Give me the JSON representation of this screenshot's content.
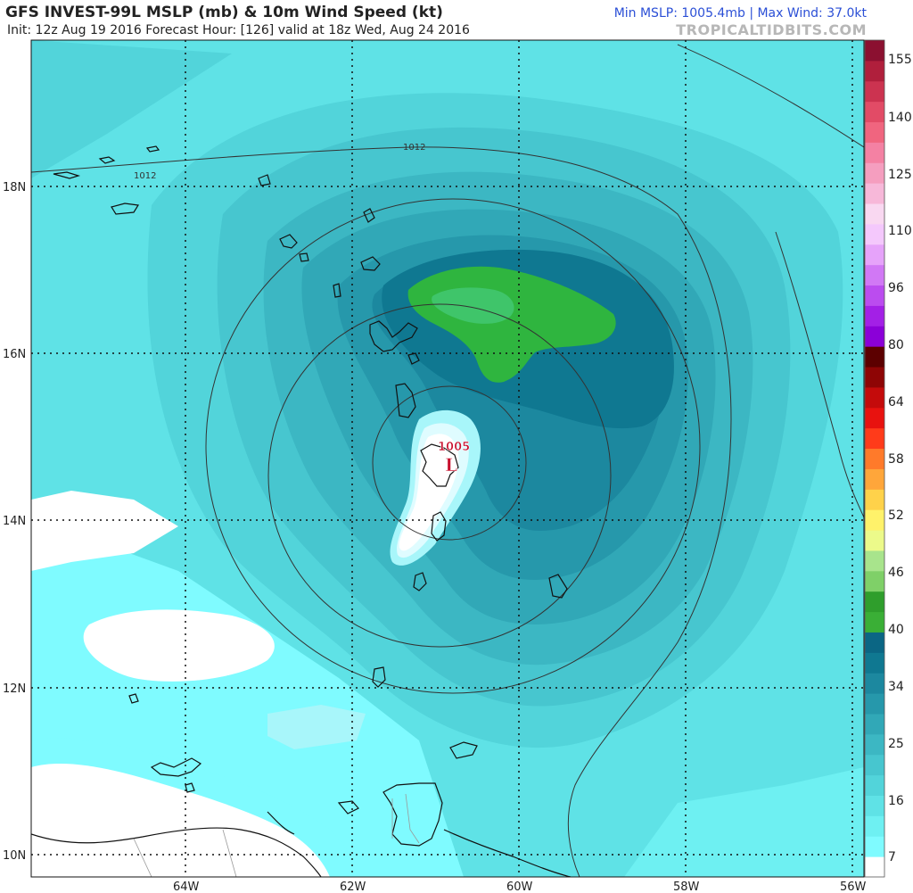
{
  "header": {
    "title": "GFS INVEST-99L MSLP (mb) & 10m Wind Speed (kt)",
    "subtitle": "Init: 12z Aug 19 2016   Forecast Hour: [126]   valid at 18z Wed, Aug 24 2016",
    "stats": "Min MSLP: 1005.4mb | Max Wind: 37.0kt",
    "brand": "TROPICALTIDBITS.COM"
  },
  "map": {
    "lat_labels": [
      "18N",
      "16N",
      "14N",
      "12N",
      "10N"
    ],
    "lon_labels": [
      "64W",
      "62W",
      "60W",
      "58W",
      "56W"
    ],
    "isobar_labels": [
      "1012",
      "1012"
    ],
    "low_center": {
      "pressure": "1005",
      "symbol": "L",
      "color": "#c8102e"
    }
  },
  "colorbar": {
    "labels": [
      "155",
      "140",
      "125",
      "110",
      "96",
      "80",
      "64",
      "58",
      "52",
      "46",
      "40",
      "34",
      "25",
      "16",
      "7"
    ],
    "colors": [
      "#ffffff",
      "#7ffbff",
      "#6ef0f2",
      "#5fe2e6",
      "#52d4da",
      "#47c6cf",
      "#3cb7c3",
      "#31a8b7",
      "#2698ab",
      "#1c889f",
      "#0f7891",
      "#0b6684",
      "#3aaf36",
      "#2f9e2c",
      "#7fd068",
      "#a8e48c",
      "#ecfa8a",
      "#fff26a",
      "#ffd24a",
      "#ffa63a",
      "#ff7a2a",
      "#ff3b1a",
      "#e8120f",
      "#c40b0b",
      "#8e0505",
      "#5c0000",
      "#8b00d8",
      "#a320e6",
      "#bb4cef",
      "#d178f5",
      "#e6a3fa",
      "#f4c8fc",
      "#f9d8f1",
      "#f7b8d9",
      "#f59ebf",
      "#f481a3",
      "#f0657f",
      "#e24b66",
      "#cc3350",
      "#b01f3c",
      "#8b1030"
    ]
  }
}
